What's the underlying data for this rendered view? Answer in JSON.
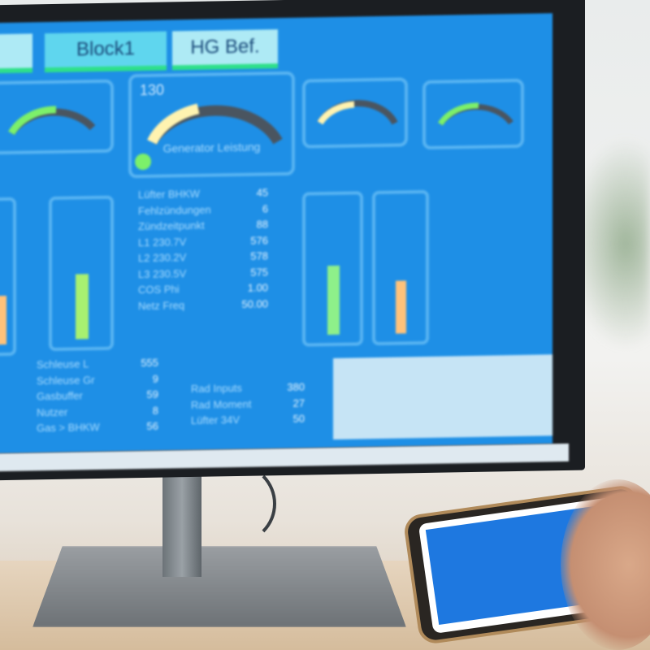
{
  "scene": {
    "screen_color": "#1e8fe6",
    "tab_active_color": "#5fd6ee",
    "tab_underline_color": "#2ee08a"
  },
  "tabs": [
    {
      "label": "Block1"
    },
    {
      "label": "HG Bef."
    }
  ],
  "main_gauge": {
    "value": "130",
    "label": "Generator Leistung",
    "status_icon": "green-indicator-dot"
  },
  "param_list": [
    {
      "label": "Lüfter BHKW",
      "value": "45"
    },
    {
      "label": "Fehlzündungen",
      "value": "6"
    },
    {
      "label": "Zündzeitpunkt",
      "value": "88"
    },
    {
      "label": "L1 230.7V",
      "value": "576"
    },
    {
      "label": "L2 230.2V",
      "value": "578"
    },
    {
      "label": "L3 230.5V",
      "value": "575"
    },
    {
      "label": "COS Phi",
      "value": "1.00"
    },
    {
      "label": "Netz Freq",
      "value": "50.00"
    }
  ],
  "bottom_list_left": [
    {
      "label": "Schleuse L",
      "value": "555"
    },
    {
      "label": "Schleuse Gr",
      "value": "9"
    },
    {
      "label": "Gasbuffer",
      "value": "59"
    },
    {
      "label": "Nutzer",
      "value": "8"
    },
    {
      "label": "Gas > BHKW",
      "value": "56"
    }
  ],
  "bottom_list_right": [
    {
      "label": "Rad Inputs",
      "value": "380"
    },
    {
      "label": "Rad Moment",
      "value": "27"
    },
    {
      "label": "Lüfter 34V",
      "value": "50"
    }
  ]
}
